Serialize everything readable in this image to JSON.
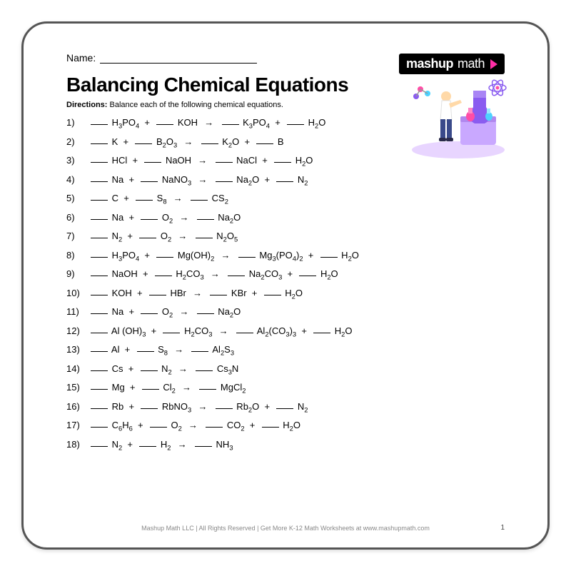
{
  "name_label": "Name:",
  "logo": {
    "text_a": "mashup",
    "text_b": "math"
  },
  "title": "Balancing Chemical Equations",
  "directions_label": "Directions:",
  "directions_text": " Balance each of the following chemical equations.",
  "arrow_glyph": "→",
  "plus": " + ",
  "equations": [
    {
      "n": "1)",
      "terms": [
        [
          "H",
          "3",
          "PO",
          "4"
        ],
        [
          "KOH"
        ]
      ],
      "prods": [
        [
          "K",
          "3",
          "PO",
          "4"
        ],
        [
          "H",
          "2",
          "O"
        ]
      ]
    },
    {
      "n": "2)",
      "terms": [
        [
          "K"
        ],
        [
          "B",
          "2",
          "O",
          "3"
        ]
      ],
      "prods": [
        [
          "K",
          "2",
          "O"
        ],
        [
          "B"
        ]
      ]
    },
    {
      "n": "3)",
      "terms": [
        [
          "HCl"
        ],
        [
          "NaOH"
        ]
      ],
      "prods": [
        [
          "NaCl"
        ],
        [
          "H",
          "2",
          "O"
        ]
      ]
    },
    {
      "n": "4)",
      "terms": [
        [
          "Na"
        ],
        [
          "NaNO",
          "3"
        ]
      ],
      "prods": [
        [
          "Na",
          "2",
          "O"
        ],
        [
          "N",
          "2"
        ]
      ]
    },
    {
      "n": "5)",
      "terms": [
        [
          "C"
        ],
        [
          "S",
          "8"
        ]
      ],
      "prods": [
        [
          "CS",
          "2"
        ]
      ]
    },
    {
      "n": "6)",
      "terms": [
        [
          "Na"
        ],
        [
          "O",
          "2"
        ]
      ],
      "prods": [
        [
          "Na",
          "2",
          "O"
        ]
      ]
    },
    {
      "n": "7)",
      "terms": [
        [
          "N",
          "2"
        ],
        [
          "O",
          "2"
        ]
      ],
      "prods": [
        [
          "N",
          "2",
          "O",
          "5"
        ]
      ]
    },
    {
      "n": "8)",
      "terms": [
        [
          "H",
          "3",
          "PO",
          "4"
        ],
        [
          "Mg(OH)",
          "2"
        ]
      ],
      "prods": [
        [
          "Mg",
          "3",
          "(PO",
          "4",
          ")",
          "2"
        ],
        [
          "H",
          "2",
          "O"
        ]
      ]
    },
    {
      "n": "9)",
      "terms": [
        [
          "NaOH"
        ],
        [
          "H",
          "2",
          "CO",
          "3"
        ]
      ],
      "prods": [
        [
          "Na",
          "2",
          "CO",
          "3"
        ],
        [
          "H",
          "2",
          "O"
        ]
      ]
    },
    {
      "n": "10)",
      "terms": [
        [
          "KOH"
        ],
        [
          "HBr"
        ]
      ],
      "prods": [
        [
          "KBr"
        ],
        [
          "H",
          "2",
          "O"
        ]
      ]
    },
    {
      "n": "11)",
      "terms": [
        [
          "Na"
        ],
        [
          "O",
          "2"
        ]
      ],
      "prods": [
        [
          "Na",
          "2",
          "O"
        ]
      ]
    },
    {
      "n": "12)",
      "terms": [
        [
          "Al (OH)",
          "3"
        ],
        [
          "H",
          "2",
          "CO",
          "3"
        ]
      ],
      "prods": [
        [
          "Al",
          "2",
          "(CO",
          "3",
          ")",
          "3"
        ],
        [
          "H",
          "2",
          "O"
        ]
      ]
    },
    {
      "n": "13)",
      "terms": [
        [
          "Al"
        ],
        [
          "S",
          "8"
        ]
      ],
      "prods": [
        [
          "Al",
          "2",
          "S",
          "3"
        ]
      ]
    },
    {
      "n": "14)",
      "terms": [
        [
          "Cs"
        ],
        [
          "N",
          "2"
        ]
      ],
      "prods": [
        [
          "Cs",
          "3",
          "N"
        ]
      ]
    },
    {
      "n": "15)",
      "terms": [
        [
          "Mg"
        ],
        [
          "Cl",
          "2"
        ]
      ],
      "prods": [
        [
          "MgCl",
          "2"
        ]
      ]
    },
    {
      "n": "16)",
      "terms": [
        [
          "Rb"
        ],
        [
          "RbNO",
          "3"
        ]
      ],
      "prods": [
        [
          "Rb",
          "2",
          "O"
        ],
        [
          "N",
          "2"
        ]
      ]
    },
    {
      "n": "17)",
      "terms": [
        [
          "C",
          "6",
          "H",
          "6"
        ],
        [
          "O",
          "2"
        ]
      ],
      "prods": [
        [
          "CO",
          "2"
        ],
        [
          "H",
          "2",
          "O"
        ]
      ]
    },
    {
      "n": "18)",
      "terms": [
        [
          "N",
          "2"
        ],
        [
          "H",
          "2"
        ]
      ],
      "prods": [
        [
          "NH",
          "3"
        ]
      ]
    }
  ],
  "footer": "Mashup Math LLC | All Rights Reserved | Get More K-12 Math Worksheets at www.mashupmath.com",
  "page_number": "1",
  "illustration": {
    "colors": {
      "platform": "#e8d5ff",
      "flask1": "#8a5cf0",
      "flask2": "#ff4da6",
      "flask3": "#4dd2ff",
      "person_body": "#ffb84d",
      "person_pants": "#3a4a8a",
      "table": "#c9a8ff"
    }
  }
}
